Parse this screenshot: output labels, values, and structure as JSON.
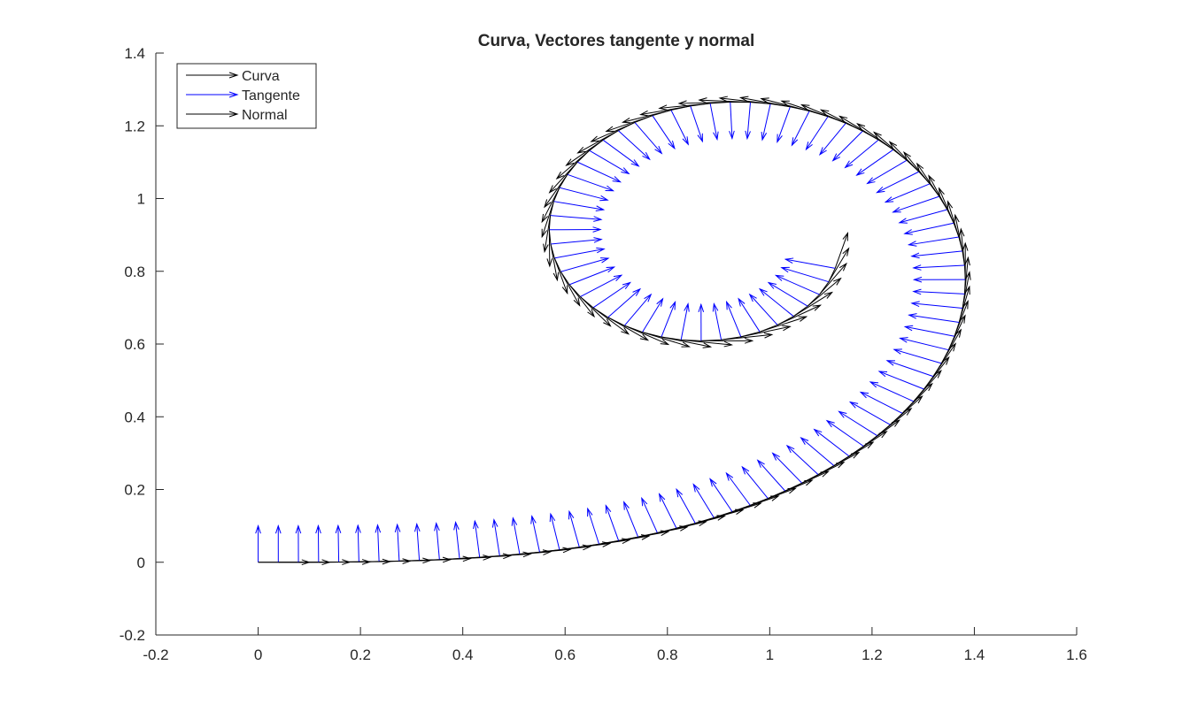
{
  "chart_data": {
    "type": "quiver",
    "title": "Curva, Vectores tangente y normal",
    "xlabel": "",
    "ylabel": "",
    "xlim": [
      -0.2,
      1.6
    ],
    "ylim": [
      -0.2,
      1.4
    ],
    "xticks": [
      -0.2,
      0,
      0.2,
      0.4,
      0.6,
      0.8,
      1,
      1.2,
      1.4,
      1.6
    ],
    "xtick_labels": [
      "-0.2",
      "0",
      "0.2",
      "0.4",
      "0.6",
      "0.8",
      "1",
      "1.2",
      "1.4",
      "1.6"
    ],
    "yticks": [
      -0.2,
      0,
      0.2,
      0.4,
      0.6,
      0.8,
      1,
      1.2,
      1.4
    ],
    "ytick_labels": [
      "-0.2",
      "0",
      "0.2",
      "0.4",
      "0.6",
      "0.8",
      "1",
      "1.2",
      "1.4"
    ],
    "grid": false,
    "legend_position": "top-left",
    "curve_description": "Euler spiral (clothoid): x(s)=∫cos(t²/2)dt, y(s)=∫sin(t²/2)dt, s in [0, 3.9], 100 samples",
    "curve": {
      "s_min": 0,
      "s_max": 3.9,
      "samples": 100
    },
    "vector_length": 0.1,
    "series": [
      {
        "name": "Curva",
        "color": "#000000"
      },
      {
        "name": "Tangente",
        "color": "#0000ff"
      },
      {
        "name": "Normal",
        "color": "#000000"
      }
    ]
  }
}
